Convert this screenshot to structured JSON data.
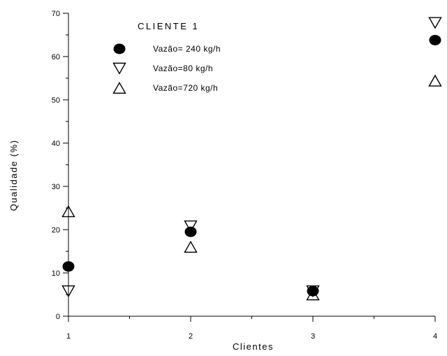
{
  "chart_data": {
    "type": "scatter",
    "xlabel": "Clientes",
    "ylabel": "Qualidade (%)",
    "xlim": [
      1,
      4
    ],
    "ylim": [
      0,
      70
    ],
    "x_ticks": [
      "1",
      "2",
      "3",
      "4"
    ],
    "y_ticks": [
      "0",
      "10",
      "20",
      "30",
      "40",
      "50",
      "60",
      "70"
    ],
    "grid": false,
    "legend_title": "CLIENTE 1",
    "legend_position": "top-left",
    "series": [
      {
        "name": "Vazão= 240 kg/h",
        "marker": "filled-circle",
        "color": "#000000",
        "x": [
          1,
          2,
          3,
          4
        ],
        "y": [
          11.5,
          19.5,
          5.8,
          63.8
        ]
      },
      {
        "name": "Vazão=80 kg/h",
        "marker": "triangle-down",
        "color": "#000000",
        "x": [
          1,
          2,
          3,
          4
        ],
        "y": [
          5.8,
          20.8,
          5.8,
          67.8
        ]
      },
      {
        "name": "Vazão=720 kg/h",
        "marker": "triangle-up",
        "color": "#000000",
        "x": [
          1,
          2,
          3,
          4
        ],
        "y": [
          24.2,
          16.0,
          5.0,
          54.4
        ]
      }
    ]
  }
}
